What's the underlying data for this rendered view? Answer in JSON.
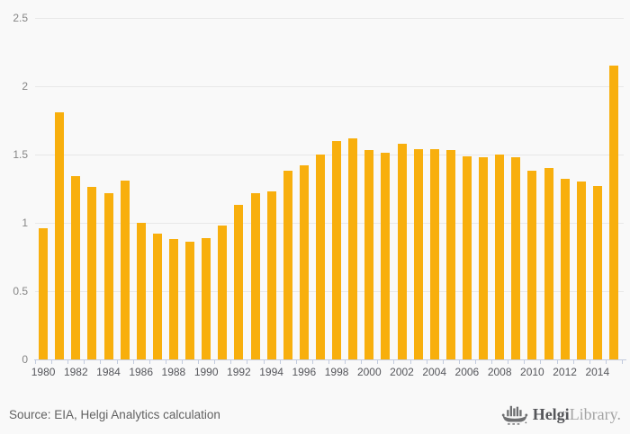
{
  "chart_data": {
    "type": "bar",
    "title": "",
    "xlabel": "",
    "ylabel": "",
    "categories": [
      1980,
      1981,
      1982,
      1983,
      1984,
      1985,
      1986,
      1987,
      1988,
      1989,
      1990,
      1991,
      1992,
      1993,
      1994,
      1995,
      1996,
      1997,
      1998,
      1999,
      2000,
      2001,
      2002,
      2003,
      2004,
      2005,
      2006,
      2007,
      2008,
      2009,
      2010,
      2011,
      2012,
      2013,
      2014,
      2015
    ],
    "values": [
      0.96,
      1.81,
      1.34,
      1.26,
      1.22,
      1.31,
      1.0,
      0.92,
      0.88,
      0.86,
      0.89,
      0.98,
      1.13,
      1.22,
      1.23,
      1.38,
      1.42,
      1.5,
      1.6,
      1.62,
      1.53,
      1.51,
      1.58,
      1.54,
      1.54,
      1.53,
      1.49,
      1.48,
      1.5,
      1.48,
      1.38,
      1.4,
      1.32,
      1.3,
      1.27,
      2.15
    ],
    "ylim": [
      0,
      2.5
    ],
    "ytick_labels": [
      "0",
      "0.5",
      "1",
      "1.5",
      "2",
      "2.5"
    ],
    "xtick_labels": [
      "1980",
      "1982",
      "1984",
      "1986",
      "1988",
      "1990",
      "1992",
      "1994",
      "1996",
      "1998",
      "2000",
      "2002",
      "2004",
      "2006",
      "2008",
      "2010",
      "2012",
      "2014"
    ],
    "grid": "horizontal",
    "legend": "none"
  },
  "footer": {
    "source_text": "Source: EIA, Helgi Analytics calculation",
    "logo": {
      "brand_bold": "Helgi",
      "brand_light": "Library.",
      "icon": "helgi-ship-bar-chart-icon"
    }
  },
  "colors": {
    "background": "#f9f9f9",
    "bar": "#F8AF0D",
    "gridline": "#e8e8e8",
    "axis_line": "#c2cbde",
    "y_label": "#868686",
    "x_label": "#55565b",
    "source_text": "#616161",
    "logo_dark": "#55565a",
    "logo_light": "#a3a3a3",
    "logo_icon": "#6e6f71"
  }
}
